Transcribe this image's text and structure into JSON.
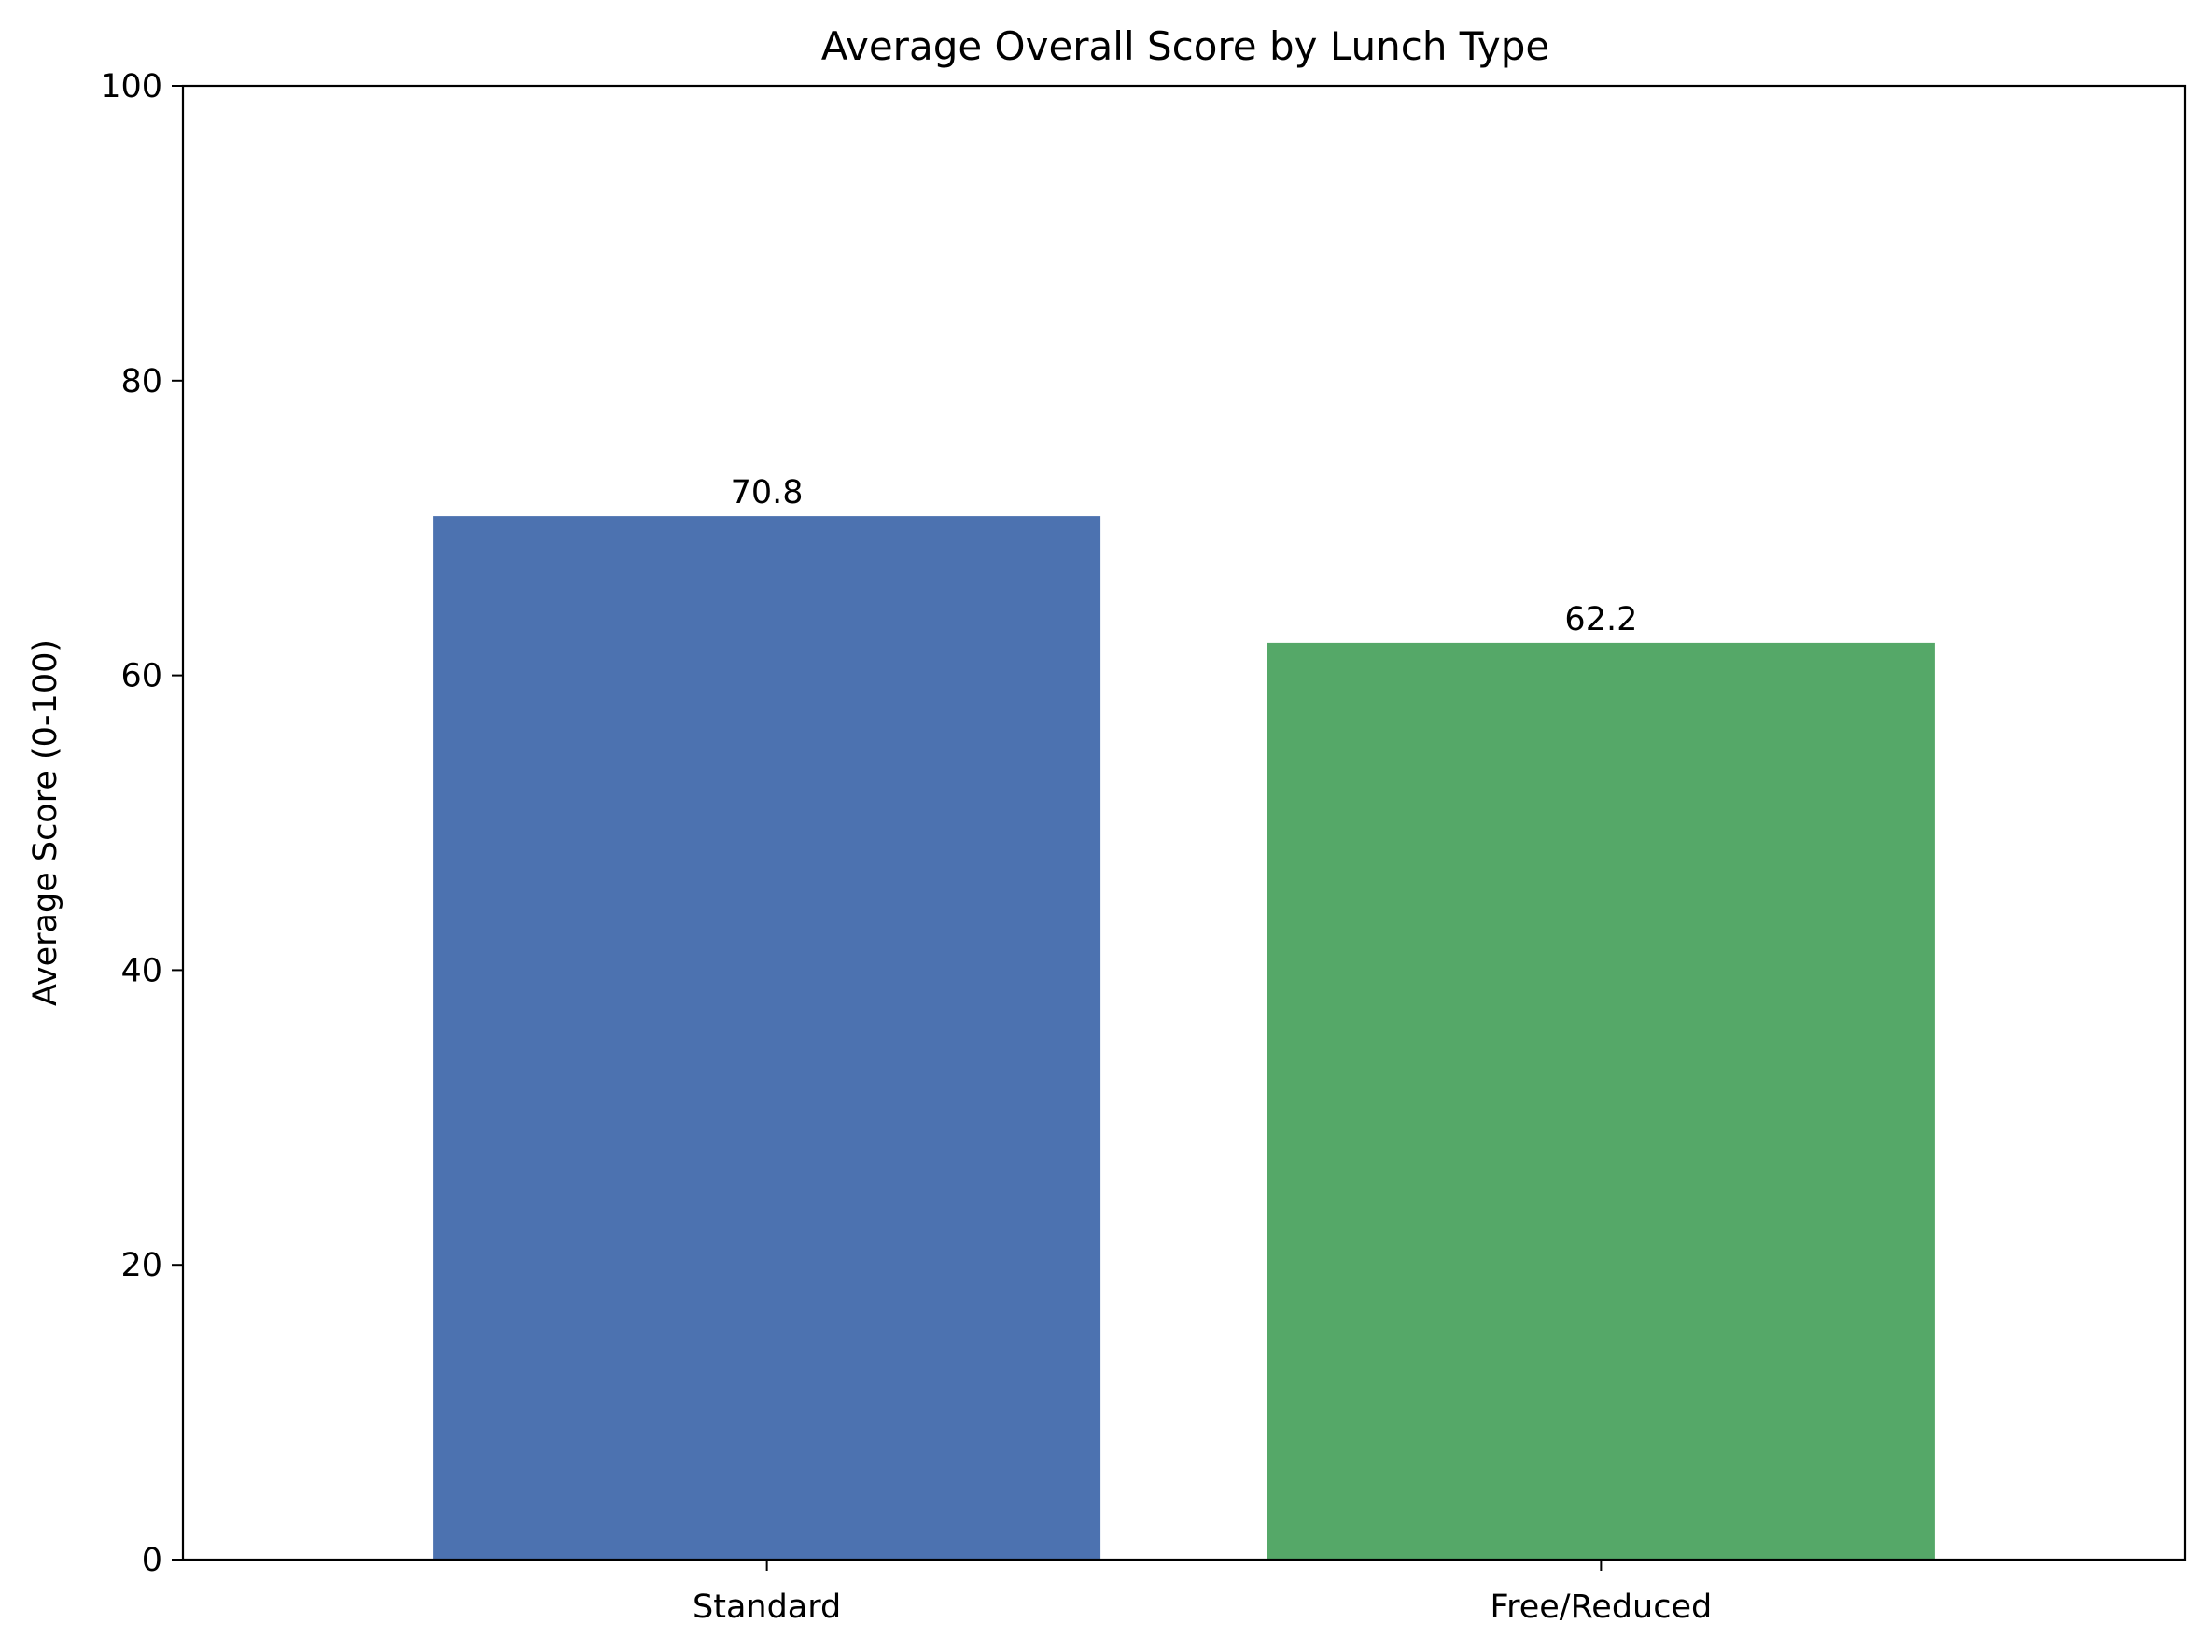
{
  "chart_data": {
    "type": "bar",
    "title": "Average Overall Score by Lunch Type",
    "xlabel": "",
    "ylabel": "Average Score (0-100)",
    "categories": [
      "Standard",
      "Free/Reduced"
    ],
    "values": [
      70.8,
      62.2
    ],
    "data_labels": [
      "70.8",
      "62.2"
    ],
    "colors": [
      "#4c72b0",
      "#55a868"
    ],
    "ylim": [
      0,
      100
    ],
    "yticks": [
      0,
      20,
      40,
      60,
      80,
      100
    ],
    "ytick_labels": [
      "0",
      "20",
      "40",
      "60",
      "80",
      "100"
    ],
    "grid": false,
    "legend": "none"
  }
}
